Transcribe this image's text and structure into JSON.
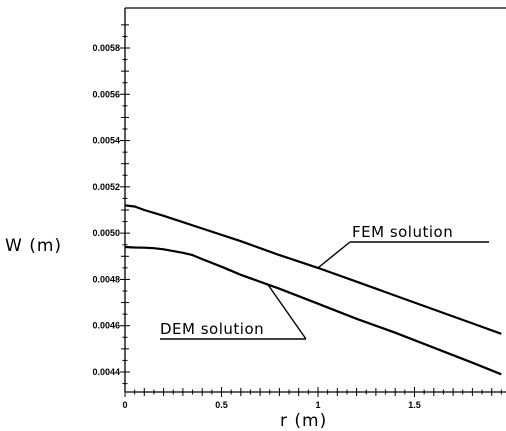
{
  "chart_data": {
    "type": "line",
    "xlabel": "r (m)",
    "ylabel": "W (m)",
    "xlim": [
      0,
      1.95
    ],
    "ylim": [
      0.0043,
      0.0059
    ],
    "x_ticks": [
      0,
      0.5,
      1,
      1.5
    ],
    "x_tick_labels": [
      "0",
      "0.5",
      "1",
      "1.5"
    ],
    "y_ticks": [
      0.0044,
      0.0046,
      0.0048,
      0.005,
      0.0052,
      0.0054,
      0.0056,
      0.0058
    ],
    "y_tick_labels": [
      "0.0044",
      "0.0046",
      "0.0048",
      "0.0050",
      "0.0052",
      "0.0054",
      "0.0056",
      "0.0058"
    ],
    "grid": false,
    "series": [
      {
        "name": "FEM solution",
        "x": [
          0,
          0.05,
          0.1,
          0.2,
          0.4,
          0.6,
          0.8,
          1.0,
          1.2,
          1.4,
          1.6,
          1.8,
          1.95
        ],
        "y": [
          0.00512,
          0.005115,
          0.0051,
          0.005075,
          0.00502,
          0.004965,
          0.004905,
          0.00485,
          0.00479,
          0.00473,
          0.00467,
          0.00461,
          0.004565
        ]
      },
      {
        "name": "DEM solution",
        "x": [
          0,
          0.05,
          0.1,
          0.15,
          0.2,
          0.3,
          0.35,
          0.4,
          0.5,
          0.6,
          0.8,
          1.0,
          1.2,
          1.4,
          1.6,
          1.8,
          1.95
        ],
        "y": [
          0.00494,
          0.004938,
          0.004937,
          0.004935,
          0.00493,
          0.004915,
          0.004905,
          0.004888,
          0.004855,
          0.00482,
          0.00476,
          0.004695,
          0.00463,
          0.00457,
          0.004505,
          0.00444,
          0.00439
        ]
      }
    ],
    "annotations": [
      {
        "text": "FEM solution",
        "series": 0
      },
      {
        "text": "DEM solution",
        "series": 1
      }
    ]
  }
}
